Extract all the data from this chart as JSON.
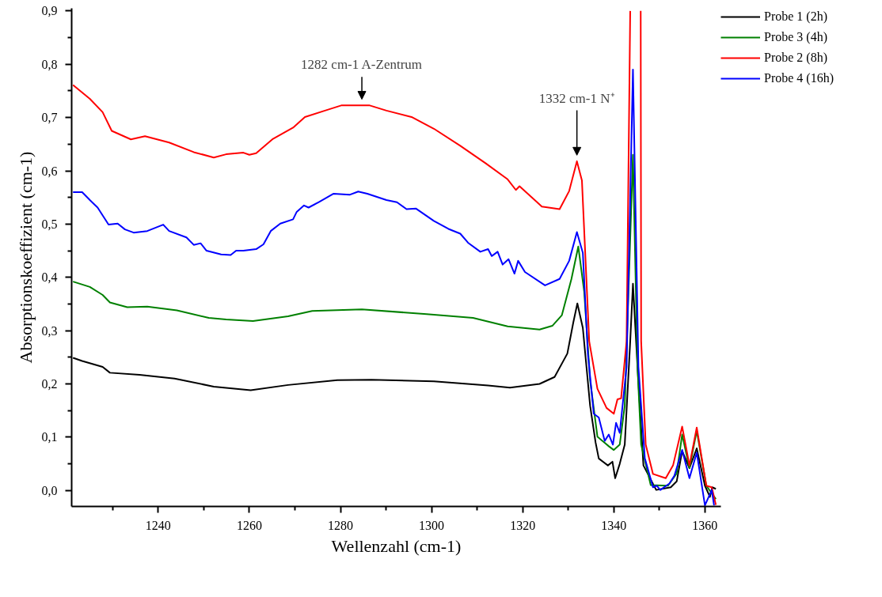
{
  "chart_data": {
    "type": "line",
    "xlabel": "Wellenzahl (cm-1)",
    "ylabel": "Absorptionskoeffizient (cm-1)",
    "xlim": [
      1221,
      1363.5
    ],
    "ylim": [
      -0.03,
      0.905
    ],
    "xticks": [
      {
        "value": 1230,
        "label": null
      },
      1240,
      {
        "value": 1250,
        "label": null
      },
      1260,
      {
        "value": 1270,
        "label": null
      },
      1280,
      {
        "value": 1290,
        "label": null
      },
      1300,
      {
        "value": 1310,
        "label": null
      },
      1320,
      {
        "value": 1330,
        "label": null
      },
      1340,
      {
        "value": 1350,
        "label": null
      },
      1360
    ],
    "yticks": [
      {
        "value": 0.0,
        "label": "0,0"
      },
      {
        "value": 0.05,
        "label": null
      },
      {
        "value": 0.1,
        "label": "0,1"
      },
      {
        "value": 0.15,
        "label": null
      },
      {
        "value": 0.2,
        "label": "0,2"
      },
      {
        "value": 0.25,
        "label": null
      },
      {
        "value": 0.3,
        "label": "0,3"
      },
      {
        "value": 0.35,
        "label": null
      },
      {
        "value": 0.4,
        "label": "0,4"
      },
      {
        "value": 0.45,
        "label": null
      },
      {
        "value": 0.5,
        "label": "0,5"
      },
      {
        "value": 0.55,
        "label": null
      },
      {
        "value": 0.6,
        "label": "0,6"
      },
      {
        "value": 0.65,
        "label": null
      },
      {
        "value": 0.7,
        "label": "0,7"
      },
      {
        "value": 0.75,
        "label": null
      },
      {
        "value": 0.8,
        "label": "0,8"
      },
      {
        "value": 0.85,
        "label": null
      },
      {
        "value": 0.9,
        "label": "0,9"
      }
    ],
    "grid": false,
    "legend": "top right",
    "marker": "none",
    "line_style": "solid",
    "annotations": [
      {
        "text": "1282 cm-1 A-Zentrum",
        "x": 1284.7,
        "y": 0.723
      },
      {
        "text": "1332 cm-1 N⁺",
        "x": 1331.9,
        "y": 0.618
      }
    ],
    "series": [
      {
        "name": "Probe 1 (2h)",
        "color": "#000000",
        "x": [
          1221.3,
          1223.3,
          1227.8,
          1229.4,
          1235.9,
          1243.6,
          1252.2,
          1260.3,
          1268.5,
          1279.3,
          1286.8,
          1300.5,
          1312.4,
          1317.2,
          1323.7,
          1327.0,
          1329.8,
          1331.1,
          1332.0,
          1333.2,
          1334.8,
          1336.0,
          1336.7,
          1338.7,
          1339.7,
          1340.3,
          1341.3,
          1342.4,
          1343.6,
          1344.2,
          1345.2,
          1346.5,
          1349.3,
          1352.5,
          1353.8,
          1355.0,
          1356.6,
          1358.2,
          1360.0,
          1361.1,
          1361.6,
          1362.4
        ],
        "values": [
          0.249,
          0.243,
          0.232,
          0.221,
          0.217,
          0.21,
          0.195,
          0.188,
          0.198,
          0.207,
          0.208,
          0.205,
          0.197,
          0.193,
          0.2,
          0.213,
          0.257,
          0.315,
          0.351,
          0.305,
          0.159,
          0.09,
          0.06,
          0.047,
          0.054,
          0.023,
          0.05,
          0.086,
          0.28,
          0.388,
          0.232,
          0.047,
          0.001,
          0.006,
          0.017,
          0.074,
          0.042,
          0.079,
          0.009,
          -0.012,
          0.006,
          0.003
        ]
      },
      {
        "name": "Probe 3 (4h)",
        "color": "#008000",
        "x": [
          1221.3,
          1225.0,
          1227.8,
          1229.4,
          1233.2,
          1237.6,
          1244.1,
          1251.1,
          1254.9,
          1260.8,
          1268.5,
          1273.8,
          1284.7,
          1298.9,
          1309.1,
          1316.7,
          1323.7,
          1326.5,
          1328.6,
          1330.7,
          1332.2,
          1333.5,
          1334.8,
          1336.4,
          1338.9,
          1340.0,
          1341.3,
          1342.4,
          1344.2,
          1345.2,
          1346.0,
          1348.1,
          1351.9,
          1353.8,
          1355.0,
          1356.6,
          1358.2,
          1360.3,
          1362.4
        ],
        "values": [
          0.392,
          0.382,
          0.367,
          0.353,
          0.344,
          0.345,
          0.338,
          0.324,
          0.321,
          0.318,
          0.327,
          0.337,
          0.34,
          0.331,
          0.324,
          0.308,
          0.302,
          0.309,
          0.329,
          0.397,
          0.458,
          0.373,
          0.207,
          0.101,
          0.083,
          0.076,
          0.086,
          0.159,
          0.63,
          0.232,
          0.086,
          0.01,
          0.009,
          0.032,
          0.105,
          0.042,
          0.112,
          0.009,
          -0.016
        ]
      },
      {
        "name": "Probe 2 (8h)",
        "color": "#ff0000",
        "x": [
          1221.3,
          1225.0,
          1227.8,
          1229.8,
          1234.0,
          1237.1,
          1242.4,
          1247.8,
          1252.2,
          1254.9,
          1258.7,
          1260.0,
          1261.5,
          1265.2,
          1269.6,
          1272.2,
          1276.6,
          1280.3,
          1284.7,
          1286.3,
          1290.1,
          1295.6,
          1300.5,
          1306.3,
          1311.9,
          1316.7,
          1318.5,
          1319.3,
          1324.2,
          1328.1,
          1330.2,
          1331.9,
          1333.0,
          1334.6,
          1336.4,
          1338.4,
          1340.0,
          1340.8,
          1341.6,
          1342.8,
          1343.6,
          1344.6,
          1345.9,
          1346.0,
          1347.0,
          1348.6,
          1351.4,
          1353.0,
          1355.0,
          1356.6,
          1358.2,
          1360.3,
          1361.5,
          1362.4
        ],
        "values": [
          0.761,
          0.735,
          0.71,
          0.675,
          0.659,
          0.665,
          0.653,
          0.635,
          0.625,
          0.631,
          0.634,
          0.63,
          0.633,
          0.66,
          0.681,
          0.701,
          0.713,
          0.723,
          0.723,
          0.723,
          0.713,
          0.701,
          0.679,
          0.647,
          0.614,
          0.584,
          0.564,
          0.571,
          0.533,
          0.528,
          0.562,
          0.618,
          0.582,
          0.28,
          0.191,
          0.155,
          0.144,
          0.171,
          0.173,
          0.28,
          0.9,
          null,
          0.9,
          0.28,
          0.086,
          0.031,
          0.023,
          0.047,
          0.12,
          0.047,
          0.118,
          0.009,
          0.006,
          -0.027
        ]
      },
      {
        "name": "Probe 4 (16h)",
        "color": "#0000ff",
        "x": [
          1221.3,
          1223.3,
          1225.0,
          1226.7,
          1229.1,
          1231.1,
          1232.7,
          1234.6,
          1237.6,
          1241.1,
          1242.4,
          1246.2,
          1247.8,
          1249.3,
          1250.6,
          1253.8,
          1255.9,
          1257.1,
          1258.7,
          1261.5,
          1263.1,
          1264.7,
          1266.8,
          1269.6,
          1270.4,
          1272.0,
          1273.0,
          1275.4,
          1278.5,
          1282.0,
          1283.9,
          1285.9,
          1290.1,
          1292.4,
          1294.5,
          1296.6,
          1300.5,
          1303.7,
          1306.3,
          1308.0,
          1310.7,
          1312.4,
          1313.2,
          1314.5,
          1315.6,
          1316.9,
          1318.2,
          1319.0,
          1320.5,
          1324.9,
          1328.1,
          1330.2,
          1331.9,
          1333.2,
          1334.3,
          1335.6,
          1336.7,
          1338.0,
          1338.9,
          1339.8,
          1340.5,
          1341.3,
          1342.8,
          1344.2,
          1345.4,
          1346.8,
          1348.6,
          1349.4,
          1350.2,
          1352.2,
          1353.3,
          1355.0,
          1356.6,
          1358.2,
          1360.0,
          1361.5,
          1362.0
        ],
        "values": [
          0.56,
          0.56,
          0.545,
          0.531,
          0.499,
          0.501,
          0.49,
          0.484,
          0.487,
          0.499,
          0.487,
          0.475,
          0.461,
          0.464,
          0.45,
          0.443,
          0.442,
          0.45,
          0.45,
          0.453,
          0.462,
          0.487,
          0.501,
          0.509,
          0.523,
          0.535,
          0.531,
          0.542,
          0.557,
          0.555,
          0.561,
          0.557,
          0.545,
          0.541,
          0.528,
          0.529,
          0.506,
          0.491,
          0.482,
          0.465,
          0.448,
          0.453,
          0.44,
          0.448,
          0.424,
          0.434,
          0.407,
          0.431,
          0.41,
          0.385,
          0.397,
          0.431,
          0.485,
          0.446,
          0.257,
          0.144,
          0.137,
          0.093,
          0.105,
          0.086,
          0.127,
          0.108,
          0.232,
          0.79,
          0.232,
          0.061,
          0.006,
          0.009,
          0.001,
          0.013,
          0.028,
          0.076,
          0.023,
          0.071,
          -0.028,
          0.001,
          -0.028
        ]
      }
    ]
  }
}
